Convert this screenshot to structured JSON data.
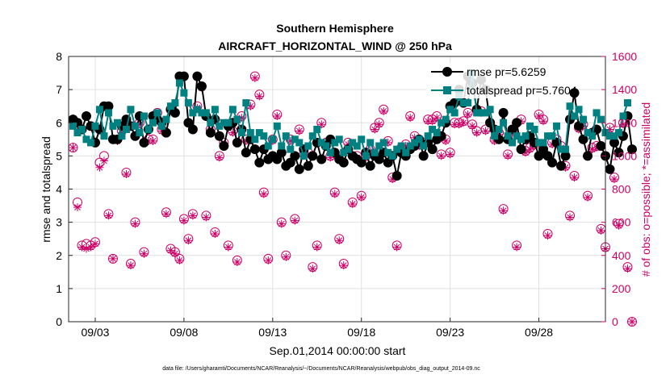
{
  "title_line1": "Southern Hemisphere",
  "title_line2": "AIRCRAFT_HORIZONTAL_WIND @ 250 hPa",
  "legend_rmse": "rmse pr=5.6259",
  "legend_spread": "totalspread pr=5.7604",
  "xlabel": "Sep.01,2014 00:00:00 start",
  "ylabel_left": "rmse and totalspread",
  "ylabel_right": "# of obs: o=possible; *=assimilated",
  "footnote": "data file: /Users/gharamti/Documents/NCAR/Reanalysis/~/Documents/NCAR/Reanalysis/webpub/obs_diag_output_2014-09.nc",
  "colors": {
    "rmse": "#000000",
    "spread": "#008080",
    "obs": "#cc0066",
    "grid": "#e0e0e0"
  },
  "chart_data": {
    "type": "line",
    "xlim": [
      1.5,
      31.75
    ],
    "ylim_left": [
      0,
      8
    ],
    "ylim_right": [
      0,
      1600
    ],
    "x_ticks": [
      3,
      8,
      13,
      18,
      23,
      28
    ],
    "x_tick_labels": [
      "09/03",
      "09/08",
      "09/13",
      "09/18",
      "09/23",
      "09/28"
    ],
    "y_left_ticks": [
      0,
      1,
      2,
      3,
      4,
      5,
      6,
      7,
      8
    ],
    "y_right_ticks": [
      0,
      200,
      400,
      600,
      800,
      1000,
      1200,
      1400,
      1600
    ],
    "x_start": 1.75,
    "x_step": 0.25,
    "series": [
      {
        "name": "rmse",
        "axis": "left",
        "values": [
          6.1,
          6.0,
          5.8,
          6.2,
          5.9,
          5.4,
          5.8,
          6.5,
          6.5,
          5.5,
          5.5,
          5.9,
          6.1,
          5.9,
          5.6,
          6.2,
          5.4,
          5.8,
          6.2,
          6.1,
          6.0,
          5.7,
          6.4,
          6.3,
          7.4,
          7.4,
          6.0,
          5.8,
          7.4,
          7.1,
          6.2,
          5.7,
          6.1,
          5.6,
          5.3,
          5.9,
          6.0,
          5.4,
          5.8,
          5.1,
          5.5,
          5.2,
          4.8,
          5.2,
          4.9,
          5.0,
          4.9,
          5.1,
          4.7,
          4.8,
          5.0,
          4.6,
          5.2,
          4.7,
          5.0,
          5.4,
          4.9,
          5.3,
          5.5,
          5.1,
          4.9,
          4.8,
          5.2,
          5.0,
          4.9,
          4.8,
          5.1,
          4.7,
          5.0,
          4.9,
          5.1,
          4.8,
          5.0,
          4.4,
          5.1,
          5.0,
          5.2,
          5.3,
          5.5,
          5.0,
          5.4,
          5.2,
          5.5,
          5.6,
          6.0,
          6.5,
          6.6,
          7.0,
          6.6,
          7.4,
          7.2,
          6.4,
          7.3,
          7.0,
          6.0,
          5.8,
          5.5,
          6.3,
          5.5,
          5.8,
          6.0,
          5.2,
          5.5,
          5.6,
          5.4,
          5.0,
          5.2,
          5.0,
          4.8,
          5.4,
          4.7,
          5.0,
          6.1,
          6.9,
          5.9,
          5.5,
          5.0,
          5.7,
          5.8,
          5.3,
          5.0,
          4.6,
          5.4,
          5.1,
          5.6,
          6.2,
          5.2
        ]
      },
      {
        "name": "totalspread",
        "axis": "left",
        "values": [
          5.9,
          5.7,
          5.8,
          5.5,
          5.4,
          5.9,
          6.4,
          5.6,
          6.3,
          5.9,
          6.0,
          5.6,
          5.8,
          6.4,
          5.9,
          5.7,
          6.2,
          5.8,
          6.0,
          6.3,
          5.9,
          6.1,
          6.5,
          6.6,
          7.2,
          6.9,
          6.6,
          6.3,
          6.4,
          6.3,
          6.3,
          6.0,
          6.4,
          5.9,
          6.0,
          6.0,
          6.4,
          6.1,
          5.7,
          6.6,
          5.7,
          5.5,
          5.7,
          5.6,
          5.3,
          5.5,
          5.9,
          5.3,
          5.6,
          5.2,
          5.5,
          5.4,
          5.0,
          5.3,
          5.6,
          5.8,
          5.4,
          5.3,
          5.1,
          5.4,
          5.5,
          5.1,
          5.2,
          5.4,
          5.3,
          5.5,
          5.0,
          5.4,
          5.1,
          5.3,
          5.4,
          5.1,
          5.0,
          5.2,
          5.3,
          5.1,
          5.3,
          5.4,
          5.5,
          5.3,
          5.6,
          5.8,
          5.7,
          6.0,
          6.1,
          6.4,
          6.3,
          6.8,
          6.6,
          6.6,
          7.5,
          6.3,
          6.3,
          6.3,
          6.4,
          5.6,
          5.8,
          6.0,
          5.6,
          5.4,
          5.6,
          5.5,
          5.6,
          5.9,
          5.8,
          5.4,
          5.4,
          5.6,
          5.6,
          5.9,
          5.2,
          5.2,
          6.5,
          6.2,
          6.4,
          6.1,
          5.7,
          5.6,
          6.3,
          6.1,
          5.7,
          5.6,
          5.6,
          5.7,
          6.2,
          6.6
        ]
      },
      {
        "name": "obs_possible",
        "axis": "right",
        "values": [
          1050,
          720,
          460,
          470,
          460,
          480,
          960,
          1000,
          650,
          380,
          1100,
          1150,
          900,
          350,
          600,
          1200,
          420,
          1100,
          1100,
          1260,
          1160,
          660,
          440,
          420,
          380,
          620,
          500,
          650,
          1300,
          1420,
          640,
          1160,
          540,
          1000,
          1080,
          460,
          1150,
          370,
          1240,
          1100,
          1310,
          1480,
          1370,
          780,
          380,
          1100,
          1250,
          600,
          400,
          1100,
          620,
          1160,
          1010,
          1020,
          330,
          460,
          1200,
          1080,
          1000,
          780,
          500,
          350,
          1080,
          720,
          1000,
          760,
          1000,
          1040,
          1170,
          1200,
          1280,
          1090,
          870,
          460,
          1050,
          1070,
          1240,
          1120,
          1070,
          1080,
          1220,
          1220,
          1240,
          1010,
          1100,
          1020,
          1200,
          1200,
          1210,
          1260,
          1190,
          1150,
          1270,
          1160,
          1200,
          1100,
          1140,
          680,
          1010,
          1150,
          460,
          1220,
          1030,
          1050,
          1070,
          1250,
          1220,
          530,
          1080,
          1100,
          1060,
          940,
          640,
          880,
          1170,
          1190,
          760,
          1050,
          1060,
          560,
          450,
          1170,
          870,
          590,
          1200,
          330,
          0
        ]
      },
      {
        "name": "obs_assimilated",
        "axis": "right",
        "values": [
          1050,
          690,
          450,
          440,
          450,
          470,
          930,
          970,
          640,
          380,
          1090,
          1140,
          890,
          340,
          590,
          1190,
          410,
          1090,
          1090,
          1250,
          1150,
          650,
          430,
          410,
          370,
          610,
          490,
          640,
          1290,
          1410,
          630,
          1150,
          530,
          990,
          1070,
          450,
          1140,
          360,
          1230,
          1090,
          1300,
          1470,
          1360,
          770,
          370,
          1090,
          1240,
          590,
          390,
          1090,
          610,
          1150,
          1000,
          1010,
          320,
          450,
          1190,
          1070,
          990,
          770,
          490,
          340,
          1070,
          710,
          990,
          750,
          990,
          1030,
          1160,
          1190,
          1270,
          1080,
          860,
          450,
          1040,
          1060,
          1230,
          1110,
          1060,
          1070,
          1210,
          1210,
          1230,
          1000,
          1090,
          1010,
          1190,
          1190,
          1200,
          1250,
          1180,
          1140,
          1260,
          1150,
          1190,
          1090,
          1130,
          670,
          1000,
          1140,
          450,
          1210,
          1020,
          1040,
          1060,
          1240,
          1210,
          520,
          1070,
          1090,
          1050,
          930,
          630,
          870,
          1160,
          1180,
          750,
          1040,
          1050,
          550,
          440,
          1160,
          860,
          580,
          1190,
          320,
          0
        ]
      }
    ]
  }
}
